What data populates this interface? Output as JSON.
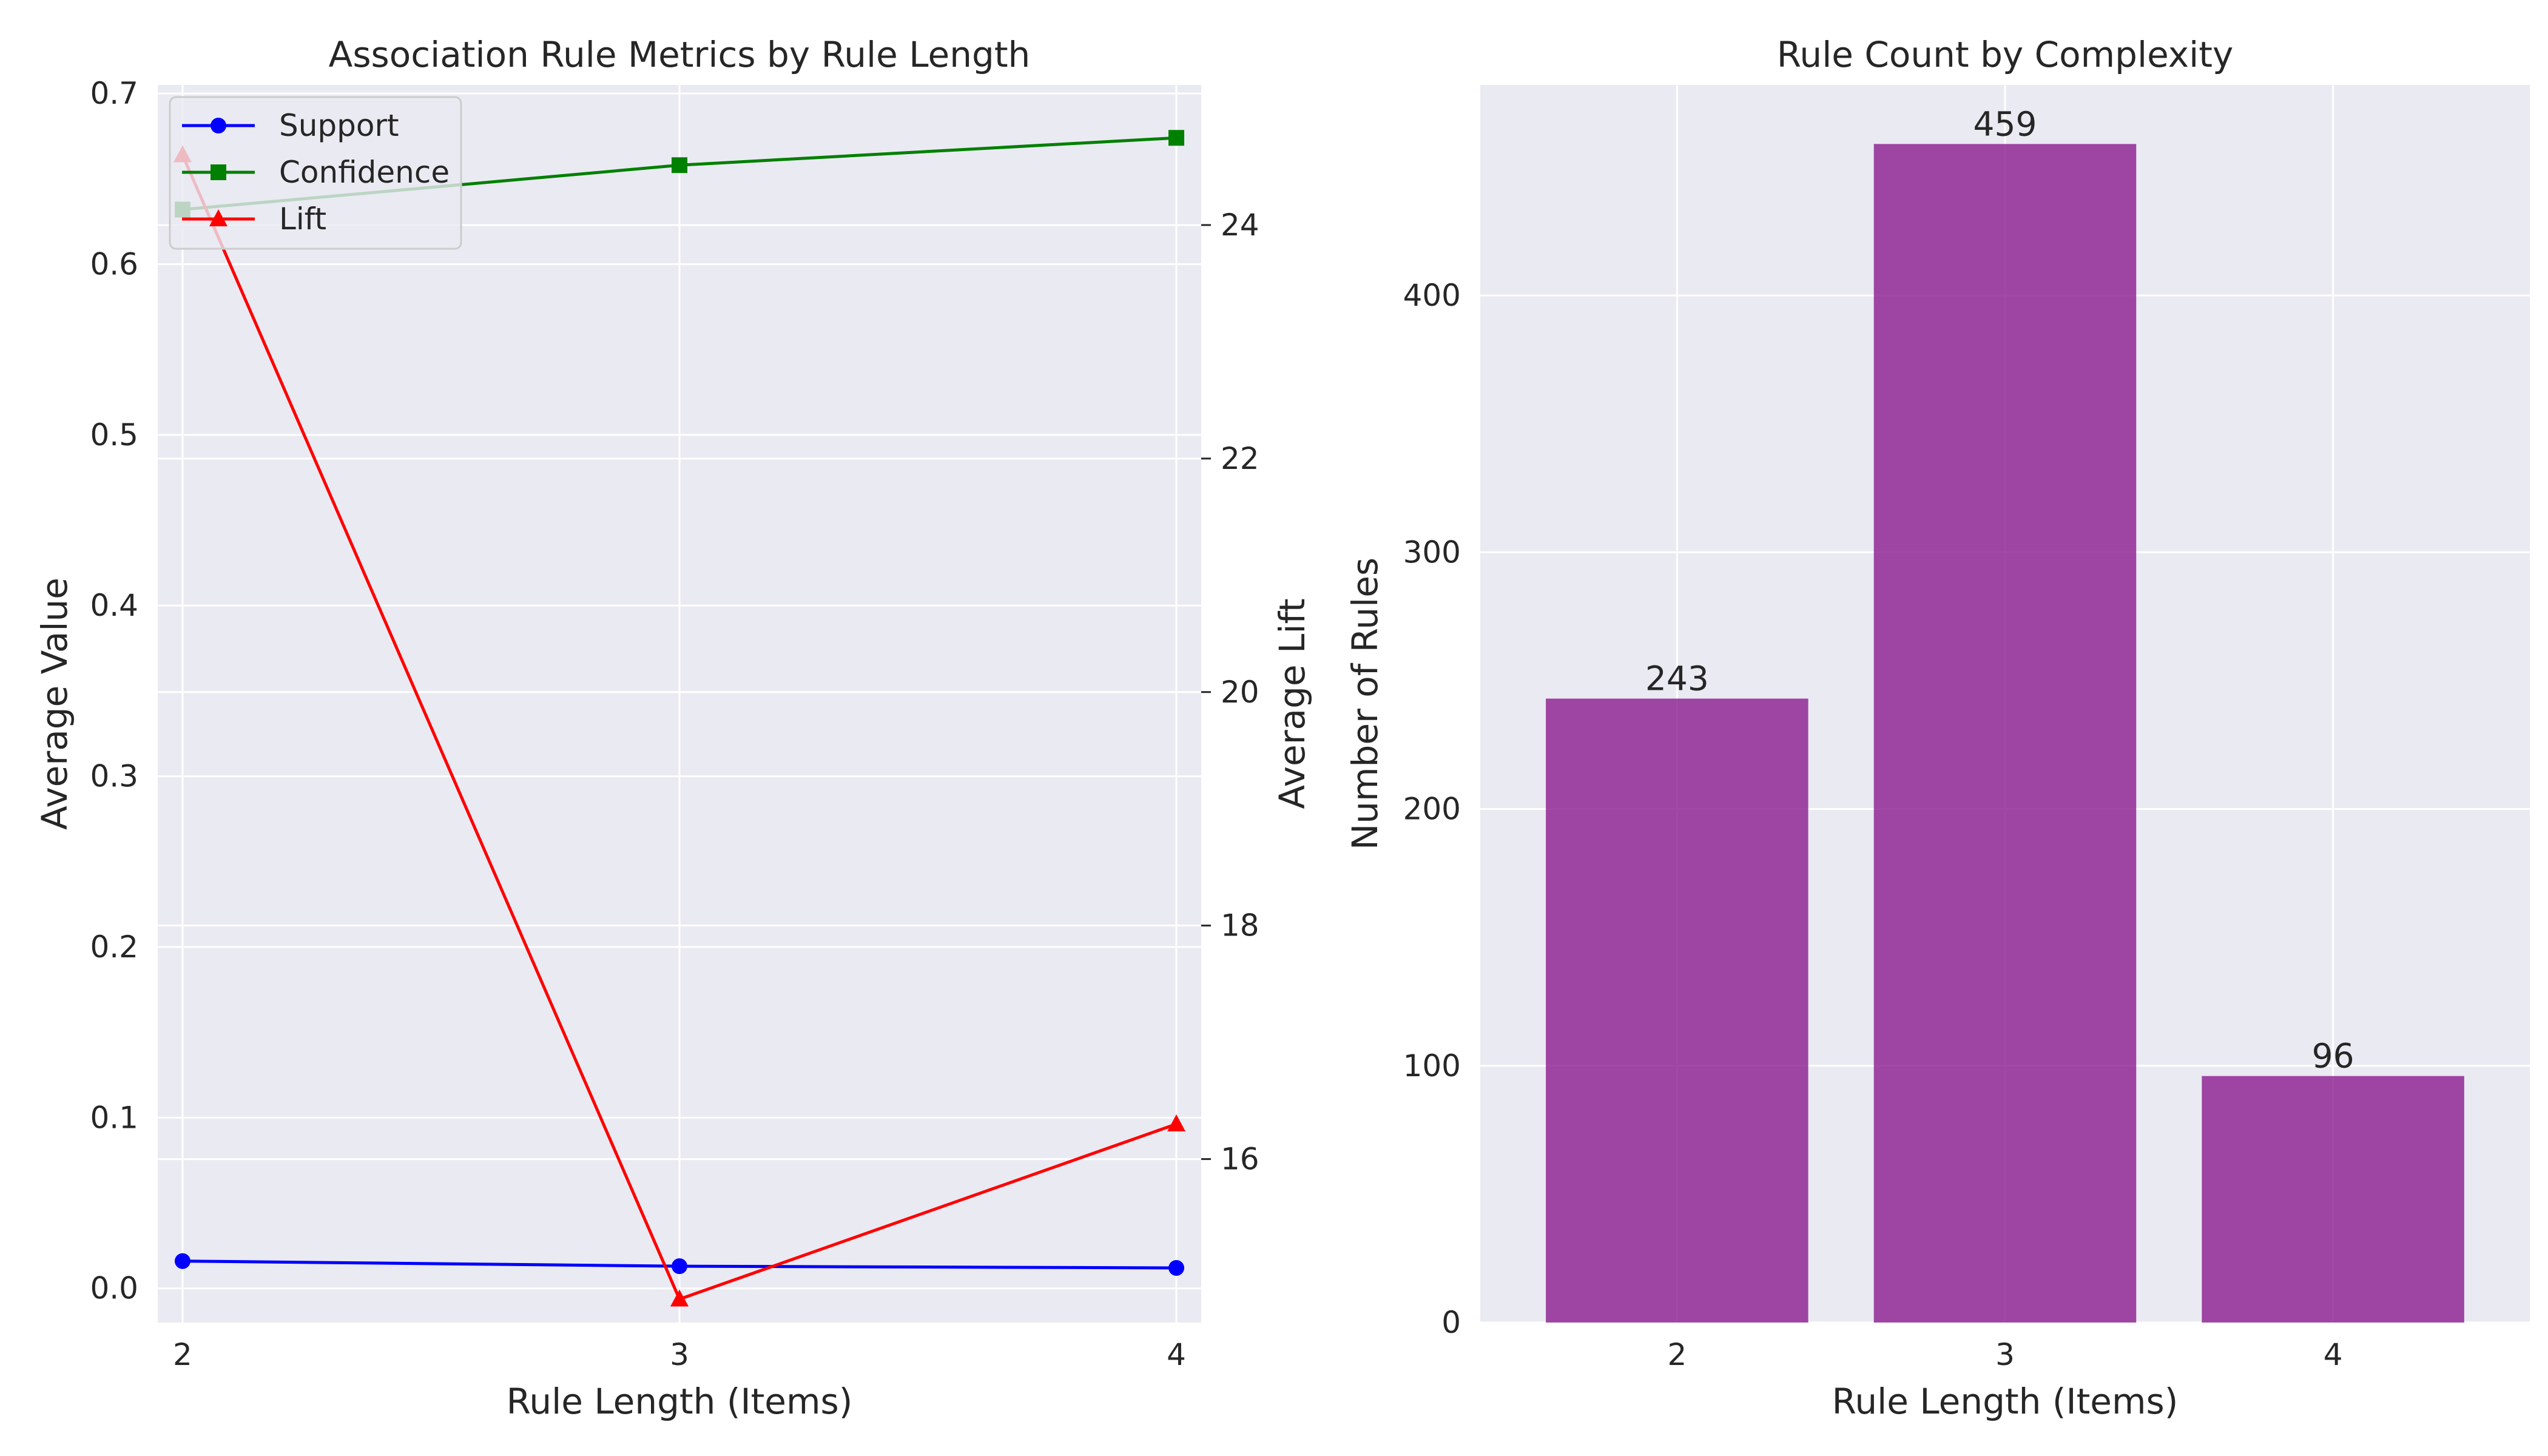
{
  "chart_data": [
    {
      "type": "line",
      "title": "Association Rule Metrics by Rule Length",
      "xlabel": "Rule Length (Items)",
      "ylabel": "Average Value",
      "y2label": "Average Lift",
      "x": [
        2,
        3,
        4
      ],
      "x_ticks": [
        "2",
        "3",
        "4"
      ],
      "ylim": [
        -0.02,
        0.705
      ],
      "y_ticks": [
        "0.0",
        "0.1",
        "0.2",
        "0.3",
        "0.4",
        "0.5",
        "0.6",
        "0.7"
      ],
      "y2lim": [
        14.6,
        25.2
      ],
      "y2_ticks": [
        "16",
        "18",
        "20",
        "22",
        "24"
      ],
      "grid": true,
      "legend": "top-left",
      "series": [
        {
          "name": "Support",
          "axis": "left",
          "values": [
            0.016,
            0.013,
            0.012
          ],
          "color": "#0000ff",
          "marker": "circle"
        },
        {
          "name": "Confidence",
          "axis": "left",
          "values": [
            0.632,
            0.658,
            0.674
          ],
          "color": "#008000",
          "marker": "square"
        },
        {
          "name": "Lift",
          "axis": "right",
          "values": [
            24.6,
            14.8,
            16.3
          ],
          "color": "#ff0000",
          "marker": "triangle"
        }
      ]
    },
    {
      "type": "bar",
      "title": "Rule Count by Complexity",
      "xlabel": "Rule Length (Items)",
      "ylabel": "Number of Rules",
      "categories": [
        "2",
        "3",
        "4"
      ],
      "values": [
        243,
        459,
        96
      ],
      "value_labels": [
        "243",
        "459",
        "96"
      ],
      "ylim": [
        0,
        482
      ],
      "y_ticks": [
        "0",
        "100",
        "200",
        "300",
        "400"
      ],
      "grid": true,
      "color": "#8b1a8f"
    }
  ]
}
